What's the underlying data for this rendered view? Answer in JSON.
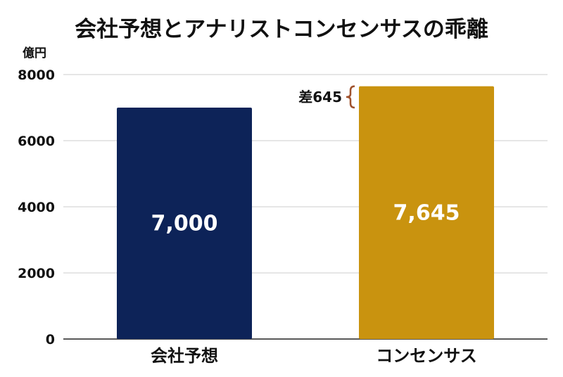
{
  "chart_data": {
    "type": "bar",
    "title": "会社予想とアナリストコンセンサスの乖離",
    "unit_label": "億円",
    "categories": [
      "会社予想",
      "コンセンサス"
    ],
    "values": [
      7000,
      7645
    ],
    "value_labels": [
      "7,000",
      "7,645"
    ],
    "colors": [
      "#0d2358",
      "#c9930f"
    ],
    "ylim": [
      0,
      8000
    ],
    "yticks": [
      0,
      2000,
      4000,
      6000,
      8000
    ],
    "grid": true,
    "annotation": {
      "text": "差645",
      "bracket_color": "#a0522d"
    }
  }
}
